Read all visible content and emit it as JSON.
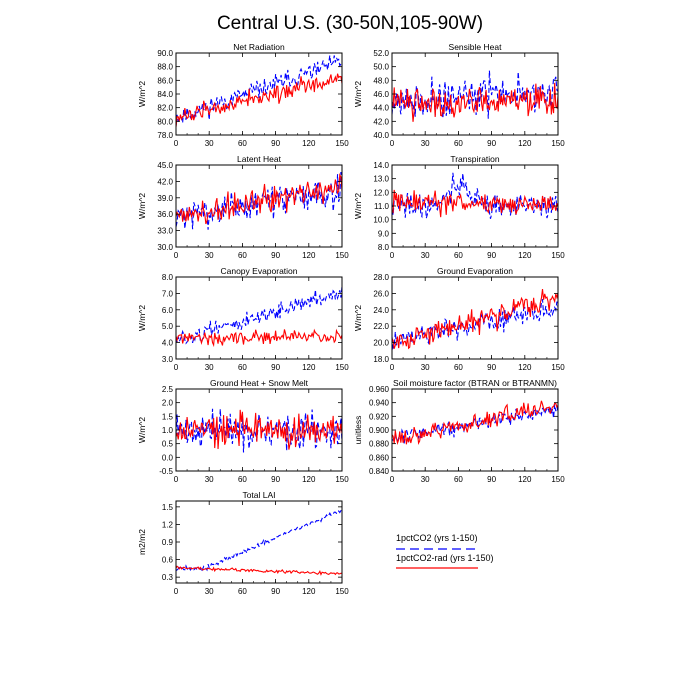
{
  "figure": {
    "title": "Central U.S. (30-50N,105-90W)",
    "legend": [
      {
        "label": "1pctCO2 (yrs 1-150)",
        "color": "#0000ff",
        "dash": true
      },
      {
        "label": "1pctCO2-rad (yrs 1-150)",
        "color": "#ff0000",
        "dash": false
      }
    ]
  },
  "chart_data": [
    {
      "type": "line",
      "title": "Net Radiation",
      "ylabel": "W/m^2",
      "xlim": [
        0,
        150
      ],
      "xticks": [
        "0",
        "30",
        "60",
        "90",
        "120",
        "150"
      ],
      "ylim": [
        78,
        90
      ],
      "yticks": [
        "78.0",
        "80.0",
        "82.0",
        "84.0",
        "86.0",
        "88.0",
        "90.0"
      ],
      "series": [
        {
          "name": "1pctCO2 (yrs 1-150)",
          "color": "#0000ff",
          "dash": true,
          "start": 80.5,
          "end": 88.8,
          "noise": 0.9,
          "seed": 11
        },
        {
          "name": "1pctCO2-rad (yrs 1-150)",
          "color": "#ff0000",
          "dash": false,
          "start": 80.5,
          "end": 86.5,
          "noise": 0.9,
          "seed": 12
        }
      ]
    },
    {
      "type": "line",
      "title": "Sensible Heat",
      "ylabel": "W/m^2",
      "xlim": [
        0,
        150
      ],
      "xticks": [
        "0",
        "30",
        "60",
        "90",
        "120",
        "150"
      ],
      "ylim": [
        40,
        52
      ],
      "yticks": [
        "40.0",
        "42.0",
        "44.0",
        "46.0",
        "48.0",
        "50.0",
        "52.0"
      ],
      "series": [
        {
          "name": "1pctCO2 (yrs 1-150)",
          "color": "#0000ff",
          "dash": true,
          "start": 45.0,
          "end": 46.5,
          "noise": 1.8,
          "seed": 21
        },
        {
          "name": "1pctCO2-rad (yrs 1-150)",
          "color": "#ff0000",
          "dash": false,
          "start": 44.8,
          "end": 45.0,
          "noise": 1.6,
          "seed": 22
        }
      ]
    },
    {
      "type": "line",
      "title": "Latent Heat",
      "ylabel": "W/m^2",
      "xlim": [
        0,
        150
      ],
      "xticks": [
        "0",
        "30",
        "60",
        "90",
        "120",
        "150"
      ],
      "ylim": [
        30,
        45
      ],
      "yticks": [
        "30.0",
        "33.0",
        "36.0",
        "39.0",
        "42.0",
        "45.0"
      ],
      "series": [
        {
          "name": "1pctCO2 (yrs 1-150)",
          "color": "#0000ff",
          "dash": true,
          "start": 35.5,
          "end": 40.5,
          "noise": 1.9,
          "seed": 31
        },
        {
          "name": "1pctCO2-rad (yrs 1-150)",
          "color": "#ff0000",
          "dash": false,
          "start": 35.5,
          "end": 41.0,
          "noise": 1.8,
          "seed": 32
        }
      ]
    },
    {
      "type": "line",
      "title": "Transpiration",
      "ylabel": "W/m^2",
      "xlim": [
        0,
        150
      ],
      "xticks": [
        "0",
        "30",
        "60",
        "90",
        "120",
        "150"
      ],
      "ylim": [
        8,
        14
      ],
      "yticks": [
        "8.0",
        "9.0",
        "10.0",
        "11.0",
        "12.0",
        "13.0",
        "14.0"
      ],
      "series": [
        {
          "name": "1pctCO2 (yrs 1-150)",
          "color": "#0000ff",
          "dash": true,
          "start": 11.0,
          "end": 11.0,
          "noise": 0.7,
          "bump": 1.6,
          "seed": 41
        },
        {
          "name": "1pctCO2-rad (yrs 1-150)",
          "color": "#ff0000",
          "dash": false,
          "start": 11.3,
          "end": 11.0,
          "noise": 0.6,
          "seed": 42
        }
      ]
    },
    {
      "type": "line",
      "title": "Canopy Evaporation",
      "ylabel": "W/m^2",
      "xlim": [
        0,
        150
      ],
      "xticks": [
        "0",
        "30",
        "60",
        "90",
        "120",
        "150"
      ],
      "ylim": [
        3,
        8
      ],
      "yticks": [
        "3.0",
        "4.0",
        "5.0",
        "6.0",
        "7.0",
        "8.0"
      ],
      "series": [
        {
          "name": "1pctCO2 (yrs 1-150)",
          "color": "#0000ff",
          "dash": true,
          "start": 4.1,
          "end": 7.1,
          "noise": 0.35,
          "seed": 51
        },
        {
          "name": "1pctCO2-rad (yrs 1-150)",
          "color": "#ff0000",
          "dash": false,
          "start": 4.3,
          "end": 4.4,
          "noise": 0.3,
          "seed": 52
        }
      ]
    },
    {
      "type": "line",
      "title": "Ground Evaporation",
      "ylabel": "W/m^2",
      "xlim": [
        0,
        150
      ],
      "xticks": [
        "0",
        "30",
        "60",
        "90",
        "120",
        "150"
      ],
      "ylim": [
        18,
        28
      ],
      "yticks": [
        "18.0",
        "20.0",
        "22.0",
        "24.0",
        "26.0",
        "28.0"
      ],
      "series": [
        {
          "name": "1pctCO2 (yrs 1-150)",
          "color": "#0000ff",
          "dash": true,
          "start": 20.0,
          "end": 24.3,
          "noise": 1.0,
          "seed": 61
        },
        {
          "name": "1pctCO2-rad (yrs 1-150)",
          "color": "#ff0000",
          "dash": false,
          "start": 20.0,
          "end": 25.5,
          "noise": 1.0,
          "seed": 62
        }
      ]
    },
    {
      "type": "line",
      "title": "Ground Heat + Snow Melt",
      "ylabel": "W/m^2",
      "xlim": [
        0,
        150
      ],
      "xticks": [
        "0",
        "30",
        "60",
        "90",
        "120",
        "150"
      ],
      "ylim": [
        -0.5,
        2.5
      ],
      "yticks": [
        "-0.5",
        "0.0",
        "0.5",
        "1.0",
        "1.5",
        "2.0",
        "2.5"
      ],
      "series": [
        {
          "name": "1pctCO2 (yrs 1-150)",
          "color": "#0000ff",
          "dash": true,
          "start": 1.0,
          "end": 0.9,
          "noise": 0.45,
          "seed": 71
        },
        {
          "name": "1pctCO2-rad (yrs 1-150)",
          "color": "#ff0000",
          "dash": false,
          "start": 1.0,
          "end": 1.0,
          "noise": 0.45,
          "seed": 72
        }
      ]
    },
    {
      "type": "line",
      "title": "Soil moisture factor (BTRAN or BTRANMN)",
      "ylabel": "unitless",
      "xlim": [
        0,
        150
      ],
      "xticks": [
        "0",
        "30",
        "60",
        "90",
        "120",
        "150"
      ],
      "ylim": [
        0.84,
        0.96
      ],
      "yticks": [
        "0.840",
        "0.860",
        "0.880",
        "0.900",
        "0.920",
        "0.940",
        "0.960"
      ],
      "series": [
        {
          "name": "1pctCO2 (yrs 1-150)",
          "color": "#0000ff",
          "dash": true,
          "start": 0.888,
          "end": 0.931,
          "noise": 0.008,
          "seed": 81
        },
        {
          "name": "1pctCO2-rad (yrs 1-150)",
          "color": "#ff0000",
          "dash": false,
          "start": 0.886,
          "end": 0.936,
          "noise": 0.009,
          "seed": 82
        }
      ]
    },
    {
      "type": "line",
      "title": "Total LAI",
      "ylabel": "m2/m2",
      "xlim": [
        0,
        150
      ],
      "xticks": [
        "0",
        "30",
        "60",
        "90",
        "120",
        "150"
      ],
      "ylim": [
        0.2,
        1.6
      ],
      "yticks": [
        "0.3",
        "0.6",
        "0.9",
        "1.2",
        "1.5"
      ],
      "series": [
        {
          "name": "1pctCO2 (yrs 1-150)",
          "color": "#0000ff",
          "dash": true,
          "start": 0.45,
          "end": 1.45,
          "noise": 0.03,
          "lag": 25,
          "seed": 91
        },
        {
          "name": "1pctCO2-rad (yrs 1-150)",
          "color": "#ff0000",
          "dash": false,
          "start": 0.46,
          "end": 0.36,
          "noise": 0.02,
          "seed": 92
        }
      ]
    }
  ]
}
